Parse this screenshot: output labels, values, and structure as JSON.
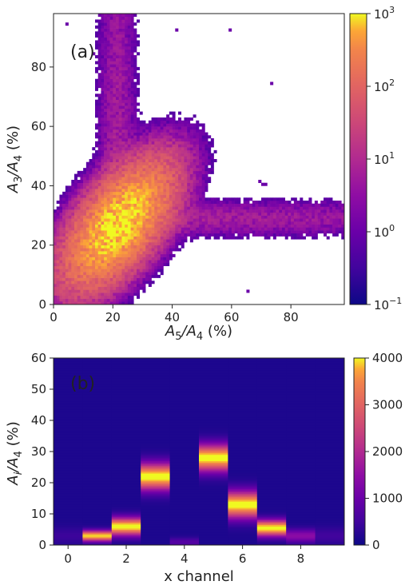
{
  "chart_data": [
    {
      "type": "heatmap",
      "panel_label": "(a)",
      "xlabel_main": "A",
      "xlabel_sub": "5",
      "xlabel_mid": "/A",
      "xlabel_sub2": "4",
      "xlabel_unit": " (%)",
      "ylabel_main": "A",
      "ylabel_sub": "3",
      "ylabel_mid": "/A",
      "ylabel_sub2": "4",
      "ylabel_unit": " (%)",
      "xlim": [
        0,
        98
      ],
      "ylim": [
        0,
        98
      ],
      "x_ticks": [
        0,
        20,
        40,
        60,
        80
      ],
      "y_ticks": [
        0,
        20,
        40,
        60,
        80
      ],
      "color_scale": "log",
      "colorbar_ticks": [
        {
          "base": "10",
          "exp": "3",
          "value": 1000
        },
        {
          "base": "10",
          "exp": "2",
          "value": 100
        },
        {
          "base": "10",
          "exp": "1",
          "value": 10
        },
        {
          "base": "10",
          "exp": "0",
          "value": 1
        },
        {
          "base": "10",
          "exp": "−1",
          "value": 0.1
        }
      ],
      "colormap": "plasma",
      "features": [
        {
          "name": "blob",
          "center": [
            22,
            27
          ],
          "peak_count": 1000
        },
        {
          "name": "vertical_band",
          "x": 22,
          "y_range": [
            30,
            98
          ],
          "count_range": [
            1,
            10
          ]
        },
        {
          "name": "horizontal_band",
          "y": 29,
          "x_range": [
            30,
            98
          ],
          "count_range": [
            1,
            10
          ]
        }
      ]
    },
    {
      "type": "heatmap",
      "panel_label": "(b)",
      "xlabel": "x channel",
      "ylabel_main": "A",
      "ylabel_sub": "i",
      "ylabel_mid": "/A",
      "ylabel_sub2": "4",
      "ylabel_unit": " (%)",
      "xlim": [
        -0.5,
        9.5
      ],
      "ylim": [
        0,
        60
      ],
      "x_ticks": [
        0,
        2,
        4,
        6,
        8
      ],
      "y_ticks": [
        0,
        10,
        20,
        30,
        40,
        50,
        60
      ],
      "color_scale": "linear",
      "colorbar_range": [
        0,
        4000
      ],
      "colorbar_ticks": [
        "0",
        "1000",
        "2000",
        "3000",
        "4000"
      ],
      "colormap": "plasma",
      "channels": [
        {
          "x": 0,
          "peak_y": 3,
          "width": 2.0,
          "peak": 300
        },
        {
          "x": 1,
          "peak_y": 3,
          "width": 1.2,
          "peak": 3800
        },
        {
          "x": 2,
          "peak_y": 6,
          "width": 2.0,
          "peak": 4000
        },
        {
          "x": 3,
          "peak_y": 22,
          "width": 3.0,
          "peak": 4000
        },
        {
          "x": 4,
          "peak_y": 1,
          "width": 1.0,
          "peak": 600
        },
        {
          "x": 5,
          "peak_y": 28,
          "width": 3.0,
          "peak": 4000
        },
        {
          "x": 6,
          "peak_y": 13,
          "width": 3.0,
          "peak": 4000
        },
        {
          "x": 7,
          "peak_y": 5.5,
          "width": 1.8,
          "peak": 4000
        },
        {
          "x": 8,
          "peak_y": 3,
          "width": 1.5,
          "peak": 1300
        },
        {
          "x": 9,
          "peak_y": 3,
          "width": 2.0,
          "peak": 350
        }
      ]
    }
  ]
}
